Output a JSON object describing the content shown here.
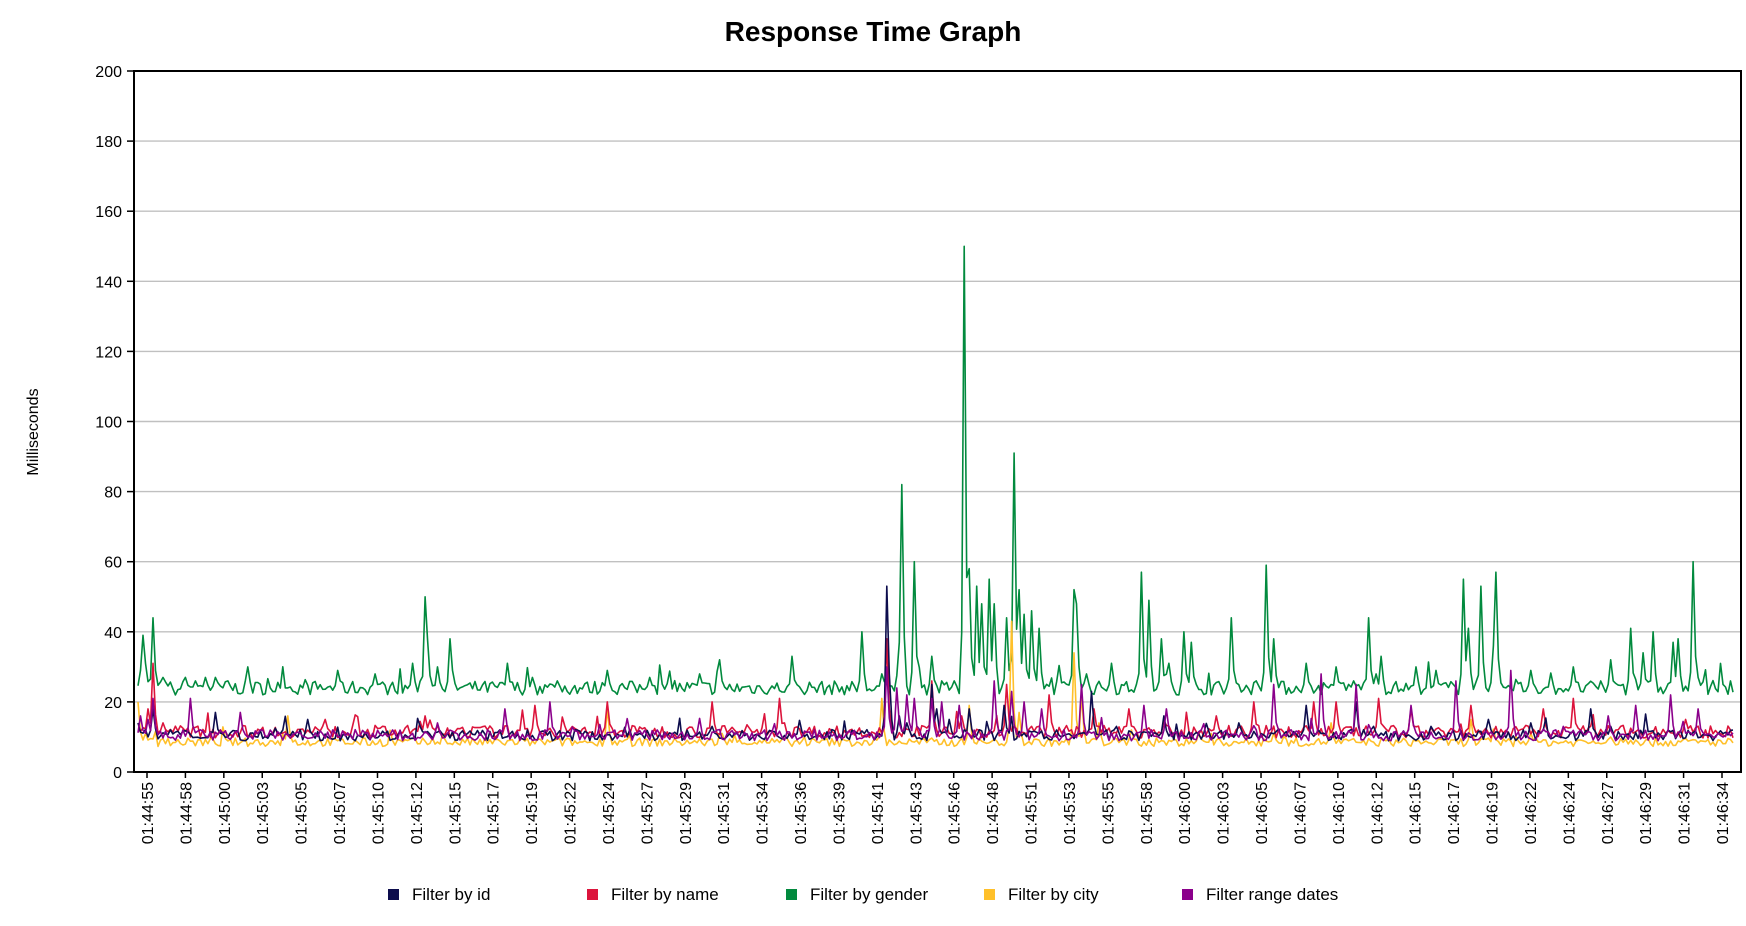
{
  "chart_data": {
    "type": "line",
    "title": "Response Time Graph",
    "xlabel": "",
    "ylabel": "Milliseconds",
    "ylim": [
      0,
      200
    ],
    "yticks": [
      0,
      20,
      40,
      60,
      80,
      100,
      120,
      140,
      160,
      180,
      200
    ],
    "grid": true,
    "legend_position": "bottom",
    "x_tick_labels": [
      "01:44:55",
      "01:44:58",
      "01:45:00",
      "01:45:03",
      "01:45:05",
      "01:45:07",
      "01:45:10",
      "01:45:12",
      "01:45:15",
      "01:45:17",
      "01:45:19",
      "01:45:22",
      "01:45:24",
      "01:45:27",
      "01:45:29",
      "01:45:31",
      "01:45:34",
      "01:45:36",
      "01:45:39",
      "01:45:41",
      "01:45:43",
      "01:45:46",
      "01:45:48",
      "01:45:51",
      "01:45:53",
      "01:45:55",
      "01:45:58",
      "01:46:00",
      "01:46:03",
      "01:46:05",
      "01:46:07",
      "01:46:10",
      "01:46:12",
      "01:46:15",
      "01:46:17",
      "01:46:19",
      "01:46:22",
      "01:46:24",
      "01:46:27",
      "01:46:29",
      "01:46:31",
      "01:46:34"
    ],
    "series": [
      {
        "name": "Filter by  id",
        "color": "#0d0d4d",
        "baseline": 10.5,
        "noise": 1.6,
        "spikes": [
          [
            0,
            14
          ],
          [
            6,
            18
          ],
          [
            13,
            12
          ],
          [
            31,
            17
          ],
          [
            68,
            15
          ],
          [
            113,
            13
          ],
          [
            201,
            11
          ],
          [
            230,
            13
          ],
          [
            300,
            53
          ],
          [
            301,
            28
          ],
          [
            305,
            16
          ],
          [
            308,
            14
          ],
          [
            318,
            25
          ],
          [
            320,
            18
          ],
          [
            325,
            15
          ],
          [
            333,
            18
          ],
          [
            347,
            19
          ],
          [
            370,
            10
          ],
          [
            382,
            23
          ],
          [
            392,
            13
          ],
          [
            411,
            16
          ],
          [
            441,
            14
          ],
          [
            468,
            19
          ],
          [
            488,
            20
          ],
          [
            495,
            13
          ],
          [
            518,
            13
          ],
          [
            541,
            15
          ],
          [
            558,
            14
          ],
          [
            582,
            18
          ],
          [
            590,
            13
          ]
        ]
      },
      {
        "name": "Filter by  name",
        "color": "#dc143c",
        "baseline": 11.5,
        "noise": 1.8,
        "spikes": [
          [
            0,
            12
          ],
          [
            4,
            18
          ],
          [
            6,
            31
          ],
          [
            10,
            14
          ],
          [
            75,
            15
          ],
          [
            115,
            16
          ],
          [
            159,
            19
          ],
          [
            188,
            20
          ],
          [
            230,
            20
          ],
          [
            257,
            21
          ],
          [
            300,
            38
          ],
          [
            318,
            26
          ],
          [
            330,
            16
          ],
          [
            348,
            25
          ],
          [
            365,
            22
          ],
          [
            383,
            18
          ],
          [
            397,
            18
          ],
          [
            432,
            16
          ],
          [
            447,
            20
          ],
          [
            471,
            20
          ],
          [
            480,
            20
          ],
          [
            497,
            21
          ],
          [
            510,
            18
          ],
          [
            534,
            19
          ],
          [
            563,
            18
          ],
          [
            575,
            21
          ],
          [
            620,
            15
          ]
        ]
      },
      {
        "name": "Filter by  gender",
        "color": "#028a3e",
        "baseline": 24,
        "noise": 2,
        "spikes": [
          [
            0,
            18
          ],
          [
            1,
            29
          ],
          [
            2,
            39
          ],
          [
            3,
            31
          ],
          [
            6,
            44
          ],
          [
            10,
            27
          ],
          [
            15,
            22
          ],
          [
            19,
            27
          ],
          [
            23,
            26
          ],
          [
            27,
            27
          ],
          [
            31,
            27
          ],
          [
            36,
            26
          ],
          [
            44,
            30
          ],
          [
            60,
            24
          ],
          [
            80,
            29
          ],
          [
            95,
            28
          ],
          [
            110,
            31
          ],
          [
            115,
            50
          ],
          [
            116,
            38
          ],
          [
            120,
            30
          ],
          [
            125,
            38
          ],
          [
            126,
            29
          ],
          [
            148,
            31
          ],
          [
            158,
            27
          ],
          [
            168,
            26
          ],
          [
            188,
            29
          ],
          [
            205,
            27
          ],
          [
            225,
            28
          ],
          [
            233,
            32
          ],
          [
            262,
            33
          ],
          [
            290,
            40
          ],
          [
            298,
            28
          ],
          [
            305,
            37
          ],
          [
            306,
            82
          ],
          [
            311,
            60
          ],
          [
            318,
            33
          ],
          [
            327,
            26
          ],
          [
            331,
            150
          ],
          [
            333,
            58
          ],
          [
            336,
            53
          ],
          [
            338,
            48
          ],
          [
            341,
            55
          ],
          [
            343,
            48
          ],
          [
            348,
            44
          ],
          [
            351,
            91
          ],
          [
            353,
            52
          ],
          [
            355,
            45
          ],
          [
            358,
            46
          ],
          [
            361,
            41
          ],
          [
            375,
            52
          ],
          [
            376,
            48
          ],
          [
            380,
            28
          ],
          [
            390,
            31
          ],
          [
            402,
            57
          ],
          [
            405,
            49
          ],
          [
            410,
            38
          ],
          [
            413,
            31
          ],
          [
            419,
            40
          ],
          [
            422,
            37
          ],
          [
            438,
            44
          ],
          [
            448,
            26
          ],
          [
            452,
            59
          ],
          [
            455,
            38
          ],
          [
            468,
            31
          ],
          [
            480,
            30
          ],
          [
            487,
            26
          ],
          [
            493,
            44
          ],
          [
            498,
            33
          ],
          [
            512,
            30
          ],
          [
            520,
            29
          ],
          [
            531,
            55
          ],
          [
            533,
            41
          ],
          [
            538,
            53
          ],
          [
            543,
            36
          ],
          [
            544,
            57
          ],
          [
            558,
            29
          ],
          [
            575,
            30
          ],
          [
            590,
            32
          ],
          [
            598,
            41
          ],
          [
            603,
            34
          ],
          [
            607,
            40
          ],
          [
            615,
            37
          ],
          [
            617,
            38
          ],
          [
            623,
            60
          ],
          [
            625,
            27
          ],
          [
            635,
            25
          ]
        ]
      },
      {
        "name": "Filter by  city",
        "color": "#ffc02a",
        "baseline": 8.5,
        "noise": 1.2,
        "spikes": [
          [
            0,
            20
          ],
          [
            3,
            11
          ],
          [
            60,
            16
          ],
          [
            188,
            18
          ],
          [
            298,
            21
          ],
          [
            333,
            19
          ],
          [
            350,
            43
          ],
          [
            353,
            17
          ],
          [
            375,
            34
          ],
          [
            378,
            22
          ],
          [
            385,
            14
          ],
          [
            398,
            12
          ],
          [
            425,
            11
          ],
          [
            455,
            11
          ],
          [
            478,
            14
          ],
          [
            534,
            15
          ],
          [
            558,
            11
          ],
          [
            590,
            10
          ]
        ]
      },
      {
        "name": "Filter range dates",
        "color": "#8b008b",
        "baseline": 10.5,
        "noise": 1.6,
        "spikes": [
          [
            1,
            16
          ],
          [
            4,
            15
          ],
          [
            6,
            21
          ],
          [
            21,
            21
          ],
          [
            41,
            17
          ],
          [
            102,
            12
          ],
          [
            120,
            14
          ],
          [
            147,
            18
          ],
          [
            165,
            20
          ],
          [
            208,
            12
          ],
          [
            300,
            30
          ],
          [
            304,
            24
          ],
          [
            308,
            22
          ],
          [
            311,
            21
          ],
          [
            318,
            21
          ],
          [
            322,
            20
          ],
          [
            329,
            19
          ],
          [
            343,
            26
          ],
          [
            350,
            23
          ],
          [
            355,
            20
          ],
          [
            362,
            18
          ],
          [
            378,
            25
          ],
          [
            403,
            19
          ],
          [
            412,
            18
          ],
          [
            426,
            12
          ],
          [
            455,
            25
          ],
          [
            474,
            28
          ],
          [
            488,
            25
          ],
          [
            510,
            19
          ],
          [
            528,
            26
          ],
          [
            550,
            29
          ],
          [
            571,
            13
          ],
          [
            589,
            16
          ],
          [
            600,
            19
          ],
          [
            614,
            22
          ],
          [
            625,
            18
          ],
          [
            635,
            10
          ]
        ]
      }
    ],
    "n_points": 640,
    "noise_seed": 7
  }
}
